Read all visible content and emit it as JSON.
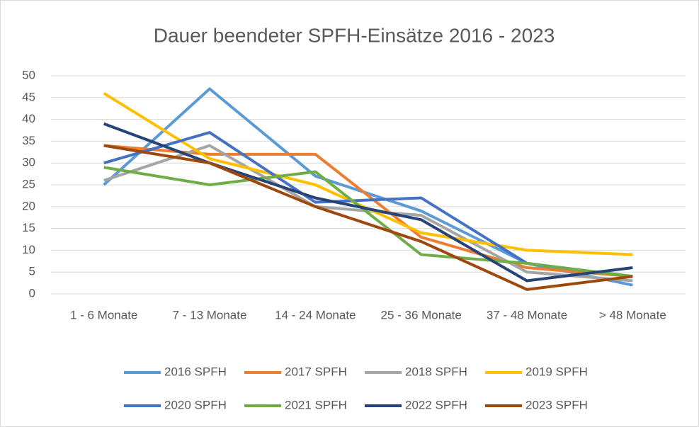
{
  "chart_data": {
    "type": "line",
    "title": "Dauer beendeter SPFH-Einsätze 2016 - 2023",
    "categories": [
      "1 - 6 Monate",
      "7 - 13 Monate",
      "14 - 24 Monate",
      "25 - 36 Monate",
      "37 - 48 Monate",
      "> 48 Monate"
    ],
    "series": [
      {
        "name": "2016 SPFH",
        "color": "#5b9bd5",
        "values": [
          25,
          47,
          27,
          19,
          7,
          2
        ]
      },
      {
        "name": "2017 SPFH",
        "color": "#ed7d31",
        "values": [
          34,
          32,
          32,
          13,
          6,
          4
        ]
      },
      {
        "name": "2018 SPFH",
        "color": "#a5a5a5",
        "values": [
          26,
          34,
          20,
          18,
          5,
          3
        ]
      },
      {
        "name": "2019 SPFH",
        "color": "#ffc000",
        "values": [
          46,
          31,
          25,
          14,
          10,
          9
        ]
      },
      {
        "name": "2020 SPFH",
        "color": "#4472c4",
        "values": [
          30,
          37,
          21,
          22,
          7,
          4
        ]
      },
      {
        "name": "2021 SPFH",
        "color": "#70ad47",
        "values": [
          29,
          25,
          28,
          9,
          7,
          4
        ]
      },
      {
        "name": "2022 SPFH",
        "color": "#264478",
        "values": [
          39,
          30,
          22,
          17,
          3,
          6
        ]
      },
      {
        "name": "2023 SPFH",
        "color": "#9e480e",
        "values": [
          34,
          30,
          20,
          12,
          1,
          4
        ]
      }
    ],
    "ylim": [
      0,
      50
    ],
    "yticks": [
      0,
      5,
      10,
      15,
      20,
      25,
      30,
      35,
      40,
      45,
      50
    ],
    "grid": true,
    "legend": "bottom"
  }
}
